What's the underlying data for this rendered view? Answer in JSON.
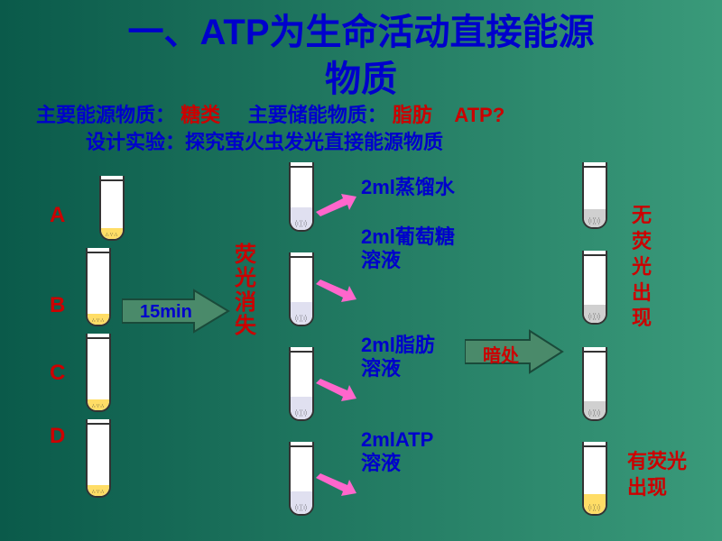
{
  "title_line1": "一、ATP为生命活动直接能源",
  "title_line2": "物质",
  "sub_main": "主要能源物质：",
  "sub_main_red": "糖类",
  "sub_store": "主要储能物质：",
  "sub_store_red": "脂肪",
  "atp_q": "ATP?",
  "design": "设计实验：探究萤火虫发光直接能源物质",
  "labels": {
    "a": "A",
    "b": "B",
    "c": "C",
    "d": "D"
  },
  "time": "15min",
  "mid_result": "荧光消失",
  "solutions": {
    "s1": "2ml蒸馏水",
    "s2a": "2ml葡萄糖",
    "s2b": "溶液",
    "s3a": "2ml脂肪",
    "s3b": "溶液",
    "s4a": "2mlATP",
    "s4b": "溶液"
  },
  "dark": "暗处",
  "result_none": "无荧光出现",
  "result_yes": "有荧光出现",
  "colors": {
    "arrow_fill": "#4a8a6a",
    "pink": "#ff66cc",
    "yellow_fill": "#ffdd66",
    "gray_fill": "#cccccc"
  }
}
